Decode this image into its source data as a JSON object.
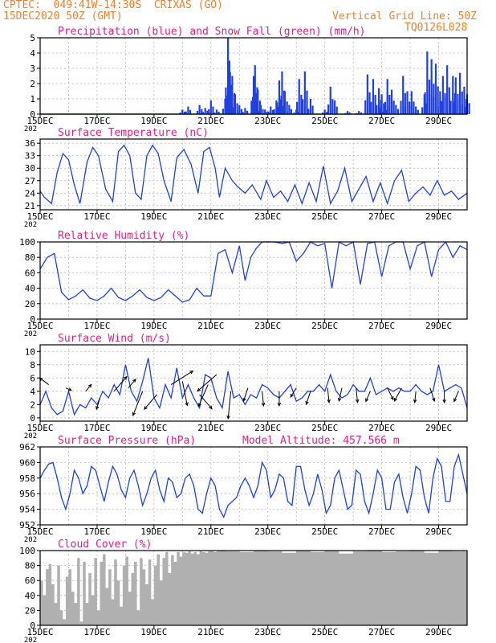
{
  "header": {
    "line1": "CPTEC:  049:41W-14:30S  CRIXAS (GO)",
    "line2": "15DEC2020 50Z (GMT)",
    "grid_note": "Vertical Grid Line: 50Z",
    "code": "TQ0126L028"
  },
  "colors": {
    "header": "#f08030",
    "title": "#e0208a",
    "line": "#2040e0",
    "bar": "#2040e0",
    "snow": "#10a010",
    "cloud": "#b0b0b0"
  },
  "x_axis": {
    "days": 15,
    "tick_labels": [
      "15DEC",
      "17DEC",
      "19DEC",
      "21DEC",
      "23DEC",
      "25DEC",
      "27DEC",
      "29DEC"
    ],
    "tick_days": [
      0,
      2,
      4,
      6,
      8,
      10,
      12,
      14
    ],
    "year_fragment": "202"
  },
  "chart_data": [
    {
      "id": "precip",
      "type": "bar",
      "title": "Precipitation (blue) and Snow Fall (green) (mm/h)",
      "ylim": [
        0,
        5
      ],
      "yticks": [
        0,
        1,
        2,
        3,
        4,
        5
      ],
      "series": [
        {
          "name": "precipitation",
          "x": [
            5.0,
            5.2,
            5.6,
            5.8,
            6.0,
            6.2,
            6.5,
            6.6,
            6.65,
            6.75,
            6.85,
            7.0,
            7.2,
            7.5,
            7.55,
            7.65,
            7.75,
            7.9,
            8.1,
            8.3,
            8.4,
            8.5,
            8.6,
            8.75,
            9.0,
            9.1,
            9.3,
            9.5,
            10.0,
            10.2,
            10.35,
            10.8,
            11.2,
            11.5,
            11.7,
            11.9,
            12.0,
            12.1,
            12.2,
            12.35,
            12.5,
            12.75,
            12.9,
            13.05,
            13.2,
            13.5,
            13.6,
            13.75,
            13.9,
            14.05,
            14.15,
            14.3,
            14.5,
            14.6,
            14.75,
            14.9,
            15.0
          ],
          "values": [
            0.3,
            0.5,
            0.6,
            0.4,
            0.9,
            0.3,
            1.0,
            5.0,
            3.5,
            2.5,
            1.3,
            0.6,
            0.4,
            2.5,
            3.2,
            1.6,
            0.6,
            0.3,
            0.5,
            0.9,
            2.2,
            2.8,
            1.5,
            0.6,
            0.3,
            2.3,
            2.8,
            1.0,
            0.3,
            1.8,
            0.9,
            0.2,
            0.2,
            2.6,
            2.3,
            1.7,
            1.3,
            0.5,
            2.3,
            1.6,
            0.6,
            2.5,
            1.5,
            1.5,
            0.5,
            1.3,
            4.1,
            3.6,
            3.3,
            1.5,
            2.5,
            3.2,
            2.5,
            2.4,
            2.7,
            1.8,
            1.3
          ]
        },
        {
          "name": "snow fall",
          "x": [
            0,
            15
          ],
          "values": [
            0,
            0
          ]
        }
      ]
    },
    {
      "id": "temp",
      "type": "line",
      "title": "Surface Temperature (nC)",
      "ylim": [
        20,
        37
      ],
      "yticks": [
        21,
        24,
        27,
        30,
        33,
        36
      ],
      "x": [
        0,
        0.15,
        0.4,
        0.6,
        0.8,
        1.0,
        1.2,
        1.4,
        1.65,
        1.85,
        2.05,
        2.3,
        2.55,
        2.75,
        2.95,
        3.15,
        3.35,
        3.55,
        3.75,
        3.95,
        4.15,
        4.35,
        4.6,
        4.8,
        5.05,
        5.3,
        5.55,
        5.75,
        5.95,
        6.15,
        6.3,
        6.5,
        6.75,
        6.95,
        7.2,
        7.45,
        7.75,
        7.95,
        8.2,
        8.45,
        8.7,
        8.95,
        9.2,
        9.45,
        9.7,
        9.95,
        10.2,
        10.45,
        10.7,
        10.95,
        11.2,
        11.45,
        11.7,
        11.95,
        12.2,
        12.45,
        12.7,
        12.95,
        13.2,
        13.45,
        13.7,
        13.95,
        14.2,
        14.45,
        14.7,
        15.0
      ],
      "values": [
        24.5,
        23.0,
        21.5,
        29.0,
        33.5,
        32.0,
        26.0,
        21.5,
        31.5,
        35.0,
        33.0,
        25.0,
        22.0,
        34.0,
        35.5,
        33.0,
        24.0,
        22.5,
        33.0,
        35.5,
        33.5,
        27.0,
        22.0,
        32.5,
        34.5,
        31.0,
        24.0,
        34.0,
        35.0,
        30.0,
        23.0,
        30.0,
        27.0,
        25.5,
        24.0,
        26.0,
        22.5,
        27.0,
        23.0,
        24.5,
        22.0,
        26.0,
        21.5,
        26.5,
        22.0,
        30.5,
        21.5,
        24.5,
        30.0,
        22.0,
        25.0,
        28.0,
        22.0,
        26.5,
        21.5,
        27.0,
        29.5,
        22.0,
        24.0,
        25.5,
        23.5,
        27.0,
        23.5,
        24.5,
        22.5,
        24.0
      ]
    },
    {
      "id": "rh",
      "type": "line",
      "title": "Relative Humidity (%)",
      "ylim": [
        0,
        100
      ],
      "yticks": [
        0,
        20,
        40,
        60,
        80,
        100
      ],
      "x": [
        0,
        0.25,
        0.5,
        0.75,
        1.0,
        1.25,
        1.5,
        1.75,
        2.0,
        2.25,
        2.5,
        2.75,
        3.0,
        3.25,
        3.5,
        3.75,
        4.0,
        4.25,
        4.5,
        4.75,
        5.0,
        5.25,
        5.5,
        5.75,
        6.0,
        6.25,
        6.5,
        6.75,
        7.0,
        7.2,
        7.4,
        7.6,
        7.8,
        8.0,
        8.25,
        8.5,
        8.75,
        9.0,
        9.25,
        9.5,
        9.75,
        10.0,
        10.25,
        10.5,
        10.75,
        11.0,
        11.25,
        11.5,
        11.75,
        12.0,
        12.25,
        12.5,
        12.75,
        13.0,
        13.25,
        13.5,
        13.75,
        14.0,
        14.25,
        14.5,
        14.75,
        15.0
      ],
      "values": [
        65,
        80,
        85,
        35,
        25,
        30,
        38,
        27,
        24,
        30,
        40,
        28,
        24,
        30,
        38,
        28,
        24,
        28,
        38,
        30,
        22,
        25,
        40,
        30,
        30,
        85,
        90,
        60,
        95,
        50,
        80,
        92,
        100,
        100,
        100,
        98,
        100,
        75,
        85,
        100,
        95,
        98,
        40,
        100,
        95,
        100,
        45,
        98,
        100,
        55,
        95,
        100,
        100,
        65,
        95,
        100,
        55,
        90,
        100,
        80,
        95,
        90
      ]
    },
    {
      "id": "wind",
      "type": "line",
      "title": "Surface Wind (m/s)",
      "ylim": [
        -0.5,
        11
      ],
      "yticks": [
        0,
        2,
        4,
        6,
        8,
        10
      ],
      "x": [
        0,
        0.2,
        0.4,
        0.6,
        0.8,
        1.0,
        1.2,
        1.4,
        1.6,
        1.8,
        2.0,
        2.2,
        2.4,
        2.6,
        2.8,
        3.0,
        3.2,
        3.4,
        3.6,
        3.8,
        4.0,
        4.2,
        4.4,
        4.6,
        4.8,
        5.0,
        5.2,
        5.4,
        5.6,
        5.8,
        6.0,
        6.2,
        6.4,
        6.6,
        6.8,
        7.0,
        7.2,
        7.4,
        7.6,
        7.8,
        8.0,
        8.2,
        8.4,
        8.6,
        8.8,
        9.0,
        9.2,
        9.4,
        9.6,
        9.8,
        10.0,
        10.2,
        10.4,
        10.6,
        10.8,
        11.0,
        11.2,
        11.4,
        11.6,
        11.8,
        12.0,
        12.2,
        12.4,
        12.6,
        12.8,
        13.0,
        13.2,
        13.4,
        13.6,
        13.8,
        14.0,
        14.2,
        14.4,
        14.6,
        14.8,
        15.0
      ],
      "values": [
        2.0,
        4.0,
        1.5,
        0.5,
        1.0,
        4.0,
        0.5,
        2.0,
        1.5,
        3.0,
        2.0,
        4.0,
        3.0,
        5.0,
        3.5,
        8.0,
        4.0,
        2.5,
        5.5,
        9.0,
        3.0,
        1.5,
        5.0,
        3.0,
        7.5,
        3.0,
        5.0,
        3.0,
        1.5,
        6.5,
        6.0,
        3.0,
        1.5,
        7.0,
        3.0,
        3.5,
        2.0,
        3.5,
        3.0,
        5.0,
        4.5,
        3.5,
        3.0,
        4.0,
        5.0,
        2.5,
        3.0,
        4.0,
        4.0,
        5.0,
        4.0,
        6.5,
        4.0,
        3.0,
        3.5,
        5.0,
        4.0,
        4.0,
        6.0,
        3.5,
        4.0,
        4.5,
        4.0,
        4.5,
        4.0,
        4.0,
        5.0,
        4.0,
        3.5,
        4.0,
        8.0,
        4.0,
        4.5,
        5.0,
        4.5,
        1.5
      ],
      "arrows": {
        "x": [
          0.3,
          0.9,
          1.6,
          2.1,
          2.6,
          3.1,
          3.6,
          4.1,
          4.6,
          5.0,
          5.6,
          5.9,
          6.2,
          6.7,
          7.3,
          7.8,
          8.4,
          9.0,
          9.5,
          10.1,
          10.6,
          11.1,
          11.6,
          12.2,
          12.7,
          13.2,
          13.7,
          14.2,
          14.7
        ],
        "y": [
          5.0,
          4.5,
          4.0,
          3.0,
          4.0,
          4.5,
          4.0,
          3.5,
          5.0,
          5.5,
          3.5,
          5.0,
          6.5,
          4.0,
          4.5,
          4.0,
          4.0,
          4.5,
          4.0,
          4.5,
          4.5,
          4.5,
          4.0,
          4.5,
          4.5,
          4.0,
          4.5,
          4.0,
          4.0
        ],
        "u": [
          -0.8,
          0.7,
          0.5,
          -0.3,
          0.6,
          0.5,
          -0.4,
          -0.6,
          0.8,
          0.2,
          0.7,
          -0.4,
          -0.7,
          -0.1,
          -0.3,
          0.1,
          0.0,
          -0.5,
          -0.3,
          0.1,
          -0.2,
          0.1,
          -0.4,
          0.4,
          -0.5,
          -0.1,
          0.3,
          0.0,
          -0.4
        ],
        "v": [
          0.6,
          -0.3,
          0.6,
          -1.0,
          0.7,
          0.6,
          -1.0,
          -0.7,
          0.5,
          -1.0,
          -0.8,
          -0.9,
          -0.6,
          -1.0,
          -0.9,
          -1.0,
          -1.0,
          -0.8,
          -0.9,
          -1.0,
          -0.9,
          -1.0,
          -0.9,
          -0.8,
          -0.9,
          -1.0,
          -0.9,
          -1.0,
          -0.9
        ],
        "mag": [
          2,
          1,
          2,
          2,
          5,
          3,
          6,
          5,
          7,
          6,
          4,
          6,
          7,
          7,
          3,
          3,
          3,
          2,
          3,
          3,
          3,
          3,
          2,
          3,
          3,
          2,
          3,
          2,
          2
        ]
      }
    },
    {
      "id": "pressure",
      "type": "line",
      "title": "Surface Pressure (hPa)",
      "subtitle": "Model Altitude: 457.566 m",
      "ylim": [
        952,
        962
      ],
      "yticks": [
        952,
        954,
        956,
        958,
        960,
        962
      ],
      "x": [
        0,
        0.15,
        0.3,
        0.45,
        0.6,
        0.75,
        0.9,
        1.05,
        1.2,
        1.35,
        1.5,
        1.65,
        1.8,
        1.95,
        2.1,
        2.25,
        2.4,
        2.55,
        2.7,
        2.85,
        3.0,
        3.15,
        3.3,
        3.45,
        3.6,
        3.75,
        3.9,
        4.05,
        4.2,
        4.35,
        4.5,
        4.65,
        4.8,
        4.95,
        5.1,
        5.25,
        5.4,
        5.55,
        5.7,
        5.85,
        6.0,
        6.15,
        6.3,
        6.45,
        6.6,
        6.75,
        6.9,
        7.05,
        7.2,
        7.35,
        7.5,
        7.65,
        7.8,
        7.95,
        8.1,
        8.25,
        8.4,
        8.55,
        8.7,
        8.85,
        9.0,
        9.15,
        9.3,
        9.45,
        9.6,
        9.75,
        9.9,
        10.05,
        10.2,
        10.35,
        10.5,
        10.65,
        10.8,
        10.95,
        11.1,
        11.25,
        11.4,
        11.55,
        11.7,
        11.85,
        12.0,
        12.15,
        12.3,
        12.45,
        12.6,
        12.75,
        12.9,
        13.05,
        13.2,
        13.35,
        13.5,
        13.65,
        13.8,
        13.95,
        14.1,
        14.25,
        14.4,
        14.55,
        14.7,
        14.85,
        15.0
      ],
      "values": [
        958.0,
        959.0,
        959.8,
        960.0,
        958.0,
        955.5,
        954.0,
        956.0,
        959.0,
        958.0,
        956.0,
        957.0,
        959.5,
        959.0,
        957.0,
        955.0,
        957.5,
        959.5,
        958.5,
        956.5,
        955.5,
        958.0,
        959.0,
        957.0,
        954.5,
        956.0,
        958.0,
        959.0,
        956.5,
        955.0,
        958.0,
        957.5,
        955.5,
        956.0,
        958.0,
        958.5,
        957.0,
        954.0,
        953.5,
        956.0,
        958.0,
        957.0,
        954.0,
        953.0,
        954.5,
        955.0,
        955.5,
        957.0,
        958.0,
        957.0,
        955.5,
        957.0,
        960.0,
        959.0,
        955.5,
        956.5,
        958.5,
        958.0,
        955.0,
        954.5,
        959.5,
        959.5,
        956.5,
        954.5,
        956.0,
        958.5,
        956.5,
        953.5,
        954.5,
        958.0,
        959.0,
        956.5,
        954.0,
        954.5,
        959.0,
        958.5,
        955.0,
        953.5,
        956.0,
        959.0,
        958.0,
        954.0,
        954.0,
        957.5,
        958.5,
        955.5,
        953.5,
        956.0,
        959.5,
        959.0,
        955.5,
        953.5,
        958.0,
        960.5,
        959.5,
        955.0,
        955.0,
        959.5,
        961.0,
        958.5,
        956.0
      ]
    },
    {
      "id": "cloud",
      "type": "area",
      "title": "Cloud Cover (%)",
      "ylim": [
        0,
        100
      ],
      "yticks": [
        0,
        20,
        40,
        60,
        80,
        100
      ],
      "x": [
        0,
        0.1,
        0.2,
        0.3,
        0.4,
        0.5,
        0.6,
        0.7,
        0.8,
        0.9,
        1.0,
        1.1,
        1.2,
        1.3,
        1.4,
        1.5,
        1.6,
        1.7,
        1.8,
        1.9,
        2.0,
        2.1,
        2.2,
        2.3,
        2.4,
        2.5,
        2.6,
        2.7,
        2.8,
        2.9,
        3.0,
        3.1,
        3.2,
        3.3,
        3.4,
        3.5,
        3.6,
        3.7,
        3.8,
        3.9,
        4.0,
        4.1,
        4.2,
        4.3,
        4.4,
        4.5,
        4.6,
        4.7,
        4.8,
        4.9,
        5.0,
        5.1,
        5.2,
        5.3,
        5.4,
        5.5,
        5.6,
        5.7,
        5.8,
        5.9,
        6.0,
        6.1,
        6.2,
        6.3,
        6.5,
        7.0,
        7.5,
        8.0,
        8.5,
        9.0,
        9.5,
        10.0,
        10.5,
        11.0,
        11.5,
        12.0,
        12.5,
        13.0,
        13.5,
        14.0,
        14.5,
        15.0
      ],
      "values": [
        60,
        40,
        75,
        82,
        55,
        30,
        80,
        20,
        8,
        65,
        75,
        45,
        30,
        90,
        5,
        85,
        30,
        70,
        40,
        90,
        20,
        85,
        95,
        50,
        75,
        35,
        88,
        60,
        25,
        80,
        92,
        45,
        70,
        85,
        20,
        90,
        75,
        55,
        88,
        35,
        80,
        95,
        60,
        90,
        98,
        70,
        94,
        85,
        98,
        92,
        98,
        97,
        99,
        96,
        98,
        95,
        99,
        98,
        97,
        99,
        99,
        98,
        99,
        100,
        99,
        98,
        100,
        99,
        97,
        100,
        98,
        100,
        96,
        99,
        100,
        98,
        99,
        100,
        97,
        100,
        99,
        100
      ]
    }
  ]
}
